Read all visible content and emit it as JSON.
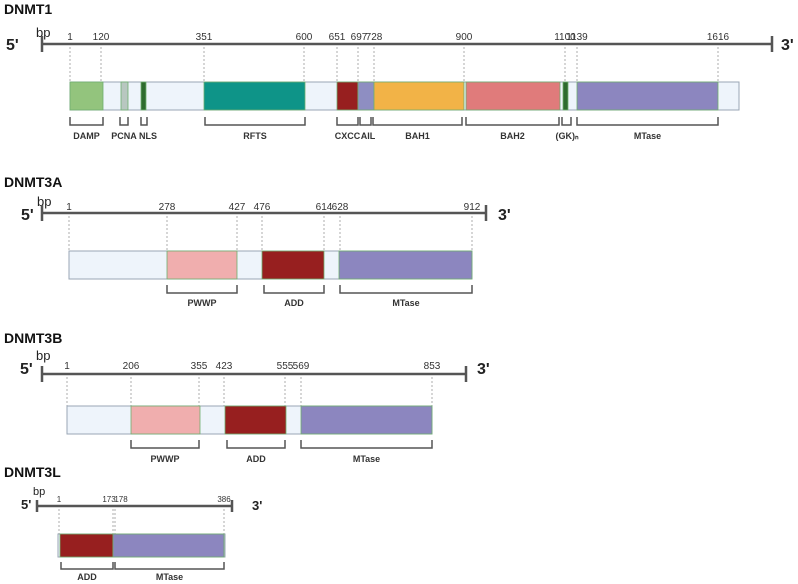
{
  "colors": {
    "axis": "#555555",
    "guide": "#9a9a9a",
    "backbone_fill": "#eef4fb",
    "backbone_stroke": "#9aa6b4",
    "bracket": "#555555"
  },
  "genes": [
    {
      "id": "dnmt1",
      "name": "DNMT1",
      "end5": "5'",
      "end3": "3'",
      "unit": "bp",
      "axis_range": [
        1,
        1616
      ],
      "positions": [
        "1",
        "120",
        "351",
        "600",
        "651",
        "697",
        "728",
        "900",
        "1100",
        "1139",
        "1616"
      ],
      "domains": [
        {
          "name": "DAMP",
          "start": 1,
          "end": 120,
          "color": "#93c47d"
        },
        {
          "name": "PCNA",
          "start": 188,
          "end": 208,
          "color": "#b8c7c0"
        },
        {
          "name": "NLS",
          "start": 248,
          "end": 262,
          "color": "#2e6b2e"
        },
        {
          "name": "RFTS",
          "start": 351,
          "end": 600,
          "color": "#0e9488"
        },
        {
          "name": "CXCC",
          "start": 651,
          "end": 697,
          "color": "#971f1f"
        },
        {
          "name": "AIL",
          "start": 697,
          "end": 728,
          "color": "#8e8ec2"
        },
        {
          "name": "BAH1",
          "start": 728,
          "end": 900,
          "color": "#f2b347"
        },
        {
          "name": "BAH2",
          "start": 900,
          "end": 1100,
          "color": "#e07b7b"
        },
        {
          "name": "(GK)ₙ",
          "start": 1100,
          "end": 1114,
          "color": "#2e6b2e"
        },
        {
          "name": "MTase",
          "start": 1139,
          "end": 1616,
          "color": "#8c86bf"
        }
      ]
    },
    {
      "id": "dnmt3a",
      "name": "DNMT3A",
      "end5": "5'",
      "end3": "3'",
      "unit": "bp",
      "axis_range": [
        1,
        912
      ],
      "positions": [
        "1",
        "278",
        "427",
        "476",
        "614",
        "628",
        "912"
      ],
      "domains": [
        {
          "name": "PWWP",
          "start": 278,
          "end": 427,
          "color": "#f0aeae"
        },
        {
          "name": "ADD",
          "start": 476,
          "end": 614,
          "color": "#971f1f"
        },
        {
          "name": "MTase",
          "start": 628,
          "end": 912,
          "color": "#8c86bf"
        }
      ]
    },
    {
      "id": "dnmt3b",
      "name": "DNMT3B",
      "end5": "5'",
      "end3": "3'",
      "unit": "bp",
      "axis_range": [
        1,
        853
      ],
      "positions": [
        "1",
        "206",
        "355",
        "423",
        "555",
        "569",
        "853"
      ],
      "domains": [
        {
          "name": "PWWP",
          "start": 206,
          "end": 355,
          "color": "#f0aeae"
        },
        {
          "name": "ADD",
          "start": 423,
          "end": 555,
          "color": "#971f1f"
        },
        {
          "name": "MTase",
          "start": 569,
          "end": 853,
          "color": "#8c86bf"
        }
      ]
    },
    {
      "id": "dnmt3l",
      "name": "DNMT3L",
      "end5": "5'",
      "end3": "3'",
      "unit": "bp",
      "axis_range": [
        1,
        386
      ],
      "positions": [
        "1",
        "173",
        "178",
        "386"
      ],
      "domains": [
        {
          "name": "ADD",
          "start": 1,
          "end": 173,
          "color": "#971f1f"
        },
        {
          "name": "MTase",
          "start": 178,
          "end": 386,
          "color": "#8c86bf"
        }
      ]
    }
  ]
}
